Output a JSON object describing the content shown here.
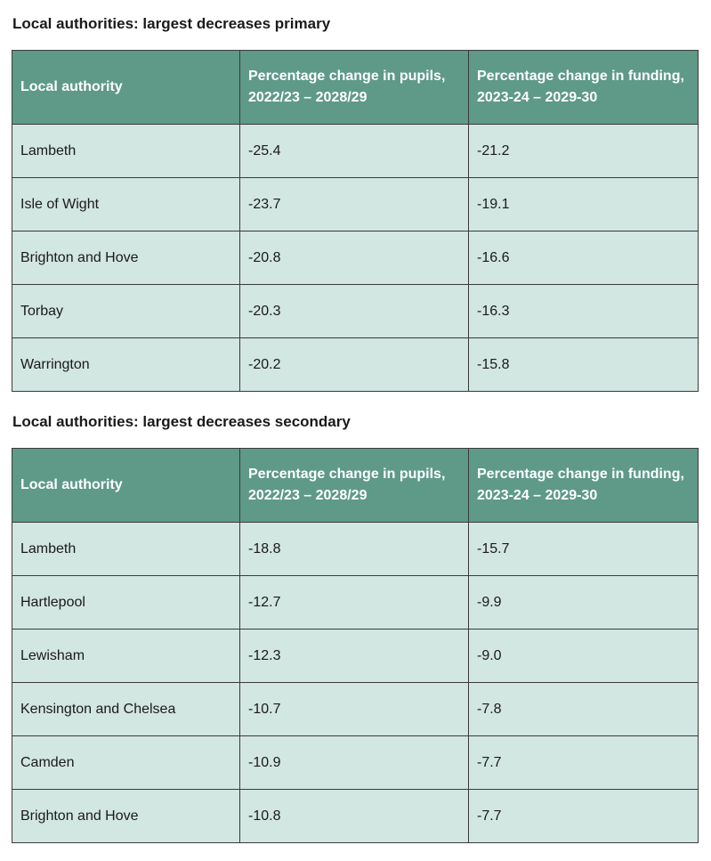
{
  "primary": {
    "title": "Local authorities: largest decreases primary",
    "headers": [
      "Local authority",
      "Percentage change in pupils, 2022/23 – 2028/29",
      "Percentage change in funding, 2023-24 – 2029-30"
    ],
    "rows": [
      [
        "Lambeth",
        "-25.4",
        "-21.2"
      ],
      [
        "Isle of Wight",
        "-23.7",
        "-19.1"
      ],
      [
        "Brighton and Hove",
        "-20.8",
        "-16.6"
      ],
      [
        "Torbay",
        "-20.3",
        "-16.3"
      ],
      [
        "Warrington",
        "-20.2",
        "-15.8"
      ]
    ]
  },
  "secondary": {
    "title": "Local authorities: largest decreases secondary",
    "headers": [
      "Local authority",
      "Percentage change in pupils, 2022/23 – 2028/29",
      "Percentage change in funding, 2023-24 – 2029-30"
    ],
    "rows": [
      [
        "Lambeth",
        "-18.8",
        "-15.7"
      ],
      [
        "Hartlepool",
        "-12.7",
        "-9.9"
      ],
      [
        "Lewisham",
        "-12.3",
        "-9.0"
      ],
      [
        "Kensington and Chelsea",
        "-10.7",
        "-7.8"
      ],
      [
        "Camden",
        "-10.9",
        "-7.7"
      ],
      [
        "Brighton and Hove",
        "-10.8",
        "-7.7"
      ]
    ]
  }
}
